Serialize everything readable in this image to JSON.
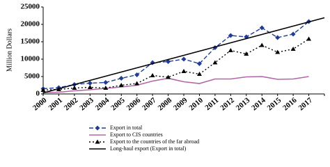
{
  "chart_data": {
    "type": "line",
    "y_label": "Million Dollars",
    "categories": [
      "2000",
      "2001",
      "2002",
      "2003",
      "2004",
      "2005",
      "2006",
      "2007",
      "2008",
      "2009",
      "2010",
      "2011",
      "2012",
      "2013",
      "2014",
      "2015",
      "2016",
      "2017",
      null
    ],
    "ylim": [
      0,
      25000
    ],
    "yticks": [
      0,
      5000,
      10000,
      15000,
      20000,
      25000
    ],
    "series": [
      {
        "name": "Export in total",
        "color": "#1f3c99",
        "style": "dashed",
        "marker": "diamond",
        "values": [
          1500,
          1800,
          2700,
          3100,
          3300,
          4500,
          5500,
          9000,
          9300,
          10000,
          8700,
          13300,
          16800,
          16400,
          19000,
          16200,
          17200,
          20800,
          null
        ]
      },
      {
        "name": "Export to CIS countries",
        "color": "#b565a7",
        "style": "solid",
        "marker": null,
        "values": [
          400,
          500,
          900,
          1200,
          1600,
          2000,
          2500,
          3700,
          4500,
          3500,
          3000,
          4300,
          4300,
          4900,
          5000,
          4200,
          4300,
          5000,
          null
        ]
      },
      {
        "name": "Export to the countries of the far abroad",
        "color": "#000000",
        "style": "dotted",
        "marker": "triangle",
        "values": [
          1100,
          1300,
          1700,
          1900,
          1700,
          2500,
          3000,
          5300,
          4800,
          6500,
          5700,
          9000,
          12500,
          11500,
          14000,
          12000,
          12900,
          15800,
          null
        ]
      },
      {
        "name": "Long-haul export (Export in total)",
        "color": "#000000",
        "style": "solid",
        "marker": null,
        "values": [
          300,
          1500,
          2700,
          3900,
          5100,
          6300,
          7500,
          8700,
          9900,
          11100,
          12300,
          13500,
          14700,
          15900,
          17100,
          18300,
          19500,
          20700,
          21900
        ]
      }
    ]
  }
}
